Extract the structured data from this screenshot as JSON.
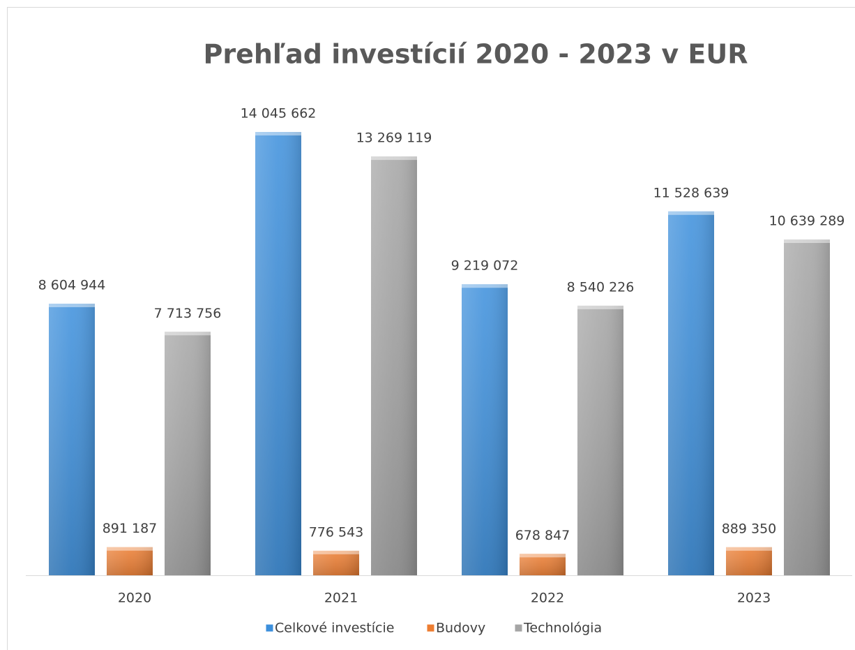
{
  "chart_data": {
    "type": "bar",
    "title": "Prehľad investícií 2020 - 2023 v EUR",
    "categories": [
      "2020",
      "2021",
      "2022",
      "2023"
    ],
    "series": [
      {
        "name": "Celkové investície",
        "color": "#3c8fdc",
        "values": [
          8604944,
          14045662,
          9219072,
          11528639
        ],
        "value_labels": [
          "8 604 944",
          "14 045 662",
          "9 219 072",
          "11 528 639"
        ]
      },
      {
        "name": "Budovy",
        "color": "#ed7d31",
        "values": [
          891187,
          776543,
          678847,
          889350
        ],
        "value_labels": [
          "891 187",
          "776 543",
          "678 847",
          "889 350"
        ]
      },
      {
        "name": "Technológia",
        "color": "#a5a5a5",
        "values": [
          7713756,
          13269119,
          8540226,
          10639289
        ],
        "value_labels": [
          "7 713 756",
          "13 269 119",
          "8 540 226",
          "10 639 289"
        ]
      }
    ],
    "legend": "bottom"
  }
}
